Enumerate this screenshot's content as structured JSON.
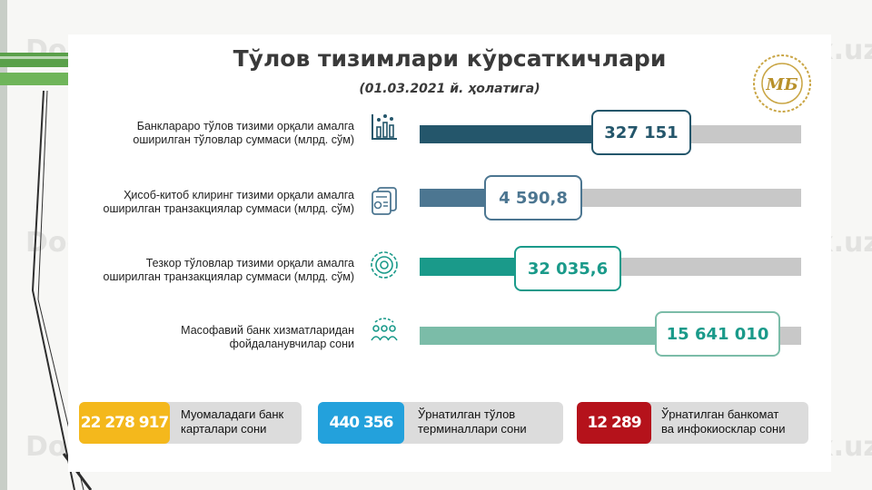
{
  "watermark": "Docx.uz",
  "title": "Тўлов тизимлари кўрсаткичлари",
  "subtitle": "(01.03.2021 й. ҳолатига)",
  "logo_text": "МБ",
  "rows": [
    {
      "label_line1": "Банклараро тўлов тизими орқали амалга",
      "label_line2": "оширилган тўловлар суммаси (млрд. сўм)",
      "value": "327 151",
      "icon": "bar-chart-icon",
      "color": "#24566b",
      "fill_fraction": 0.46
    },
    {
      "label_line1": "Ҳисоб-китоб клиринг тизими орқали амалга",
      "label_line2": "оширилган транзакциялар суммаси (млрд. сўм)",
      "value": "4 590,8",
      "icon": "document-chart-icon",
      "color": "#4c7691",
      "fill_fraction": 0.18
    },
    {
      "label_line1": "Тезкор тўловлар тизими орқали амалга",
      "label_line2": "оширилган транзакциялар суммаси (млрд. сўм)",
      "value": "32 035,6",
      "icon": "target-icon",
      "color": "#1a9a8a",
      "fill_fraction": 0.25
    },
    {
      "label_line1": "Масофавий банк хизматларидан",
      "label_line2": "фойдаланувчилар сони",
      "value": "15 641 010",
      "icon": "users-icon",
      "color": "#7bbca8",
      "fill_fraction": 0.66
    }
  ],
  "stats": [
    {
      "value": "22 278 917",
      "label_line1": "Муомаладаги банк",
      "label_line2": "карталари сони",
      "color": "#f4b81c"
    },
    {
      "value": "440 356",
      "label_line1": "Ўрнатилган тўлов",
      "label_line2": "терминаллари сони",
      "color": "#23a1dc"
    },
    {
      "value": "12 289",
      "label_line1": "Ўрнатилган банкомат",
      "label_line2": "ва инфокиосклар сони",
      "color": "#b5121b"
    }
  ]
}
